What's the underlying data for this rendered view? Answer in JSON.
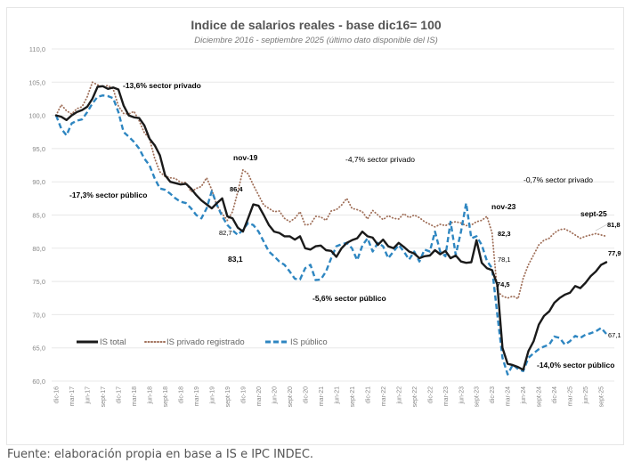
{
  "chart_data": {
    "type": "line",
    "title": "Indice de salarios reales -  base dic16= 100",
    "subtitle": "Diciembre 2016 - septiembre 2025 (último dato disponible del IS)",
    "xlabel": "",
    "ylabel": "",
    "ylim": [
      60,
      110
    ],
    "yticks": [
      "60,0",
      "65,0",
      "70,0",
      "75,0",
      "80,0",
      "85,0",
      "90,0",
      "95,0",
      "100,0",
      "105,0",
      "110,0"
    ],
    "grid": true,
    "legend_position": "bottom-left",
    "x_tick_labels": [
      "dic-16",
      "mar-17",
      "jun-17",
      "sept-17",
      "dic-17",
      "mar-18",
      "jun-18",
      "sept-18",
      "dic-18",
      "mar-19",
      "jun-19",
      "sept-19",
      "dic-19",
      "mar-20",
      "jun-20",
      "sept-20",
      "dic-20",
      "mar-21",
      "jun-21",
      "sept-21",
      "dic-21",
      "mar-22",
      "jun-22",
      "sept-22",
      "dic-22",
      "mar-23",
      "jun-23",
      "sept-23",
      "dic-23",
      "mar-24",
      "jun-24",
      "sept-24",
      "dic-24",
      "mar-25",
      "jun-25",
      "sept-25"
    ],
    "x_start": "dic-16",
    "x_frequency": "monthly",
    "series": [
      {
        "name": "IS total",
        "style": "solid",
        "color": "#1a1a1a",
        "values": [
          100.0,
          99.8,
          99.3,
          100.0,
          100.5,
          100.8,
          101.3,
          102.5,
          104.3,
          104.4,
          104.0,
          104.2,
          103.9,
          101.5,
          100.0,
          99.7,
          99.6,
          98.5,
          96.5,
          95.5,
          94.0,
          91.0,
          90.0,
          89.8,
          89.6,
          89.7,
          89.0,
          88.0,
          87.2,
          86.6,
          86.0,
          86.8,
          87.5,
          84.8,
          84.5,
          83.1,
          82.5,
          84.5,
          86.6,
          86.4,
          85.0,
          83.5,
          82.5,
          82.3,
          81.8,
          81.8,
          81.3,
          81.8,
          80.0,
          79.8,
          80.3,
          80.4,
          79.7,
          79.6,
          78.7,
          80.0,
          80.8,
          81.2,
          81.5,
          82.5,
          81.8,
          81.6,
          80.5,
          81.3,
          80.3,
          80.0,
          80.8,
          80.2,
          79.5,
          79.2,
          78.5,
          78.8,
          78.9,
          79.7,
          79.1,
          79.6,
          78.5,
          78.9,
          78.0,
          77.8,
          77.9,
          81.2,
          77.8,
          77.0,
          76.7,
          74.5,
          65.0,
          62.6,
          62.4,
          62.1,
          61.7,
          64.5,
          66.0,
          68.5,
          69.8,
          70.5,
          71.8,
          72.5,
          73.0,
          73.3,
          74.3,
          74.0,
          74.8,
          75.8,
          76.5,
          77.5,
          77.9
        ]
      },
      {
        "name": "IS privado registrado",
        "style": "dotted",
        "color": "#a0705a",
        "values": [
          100.0,
          101.6,
          100.7,
          100.2,
          101.0,
          101.3,
          102.8,
          105.0,
          104.6,
          104.3,
          104.5,
          104.0,
          101.4,
          100.3,
          100.2,
          100.6,
          99.2,
          97.4,
          96.5,
          93.5,
          91.5,
          90.8,
          90.6,
          90.5,
          89.9,
          89.9,
          88.5,
          89.0,
          89.3,
          90.6,
          88.8,
          86.4,
          85.2,
          84.2,
          85.5,
          88.5,
          91.8,
          91.2,
          89.5,
          88.0,
          86.5,
          86.0,
          85.5,
          85.6,
          84.5,
          84.0,
          84.5,
          85.5,
          83.5,
          83.6,
          84.8,
          84.7,
          84.2,
          85.6,
          85.8,
          86.5,
          87.5,
          86.0,
          85.8,
          85.5,
          84.4,
          85.7,
          85.0,
          84.3,
          84.9,
          84.5,
          84.4,
          85.2,
          84.6,
          85.0,
          84.6,
          84.0,
          83.6,
          83.2,
          83.6,
          83.4,
          83.8,
          84.0,
          83.8,
          83.4,
          83.5,
          84.0,
          84.2,
          84.8,
          82.3,
          73.5,
          72.8,
          72.5,
          72.8,
          72.4,
          75.5,
          77.5,
          79.0,
          80.5,
          81.2,
          81.5,
          82.3,
          82.8,
          82.9,
          82.5,
          82.0,
          81.5,
          81.8,
          82.0,
          82.2,
          82.0,
          81.8
        ]
      },
      {
        "name": "IS público",
        "style": "dashed",
        "color": "#2e86c1",
        "values": [
          100.0,
          98.0,
          97.0,
          98.8,
          99.2,
          99.4,
          100.5,
          101.8,
          102.8,
          103.0,
          102.9,
          102.6,
          100.5,
          97.5,
          96.8,
          96.0,
          95.0,
          93.5,
          92.5,
          90.5,
          89.0,
          88.8,
          88.2,
          87.5,
          87.0,
          86.8,
          86.0,
          85.0,
          84.5,
          86.0,
          88.6,
          86.5,
          84.8,
          83.5,
          82.7,
          82.0,
          82.8,
          83.8,
          83.5,
          82.5,
          81.0,
          79.5,
          78.8,
          78.0,
          77.5,
          76.5,
          75.4,
          75.3,
          77.0,
          77.5,
          75.2,
          75.3,
          76.5,
          78.5,
          80.3,
          80.6,
          80.8,
          80.0,
          78.2,
          80.4,
          81.5,
          79.5,
          80.8,
          80.3,
          78.5,
          79.5,
          80.5,
          79.5,
          78.3,
          79.5,
          78.0,
          79.8,
          79.5,
          82.5,
          79.5,
          78.8,
          84.0,
          79.0,
          82.5,
          86.8,
          81.5,
          81.8,
          80.5,
          78.1,
          77.0,
          70.0,
          63.5,
          61.0,
          62.5,
          61.8,
          61.5,
          63.5,
          64.2,
          64.8,
          65.2,
          65.5,
          66.7,
          66.5,
          65.5,
          66.0,
          66.8,
          66.5,
          67.0,
          67.2,
          67.5,
          68.0,
          67.1
        ]
      }
    ],
    "annotations": [
      {
        "text": "-13,6% sector privado",
        "color": "#9c6b4e"
      },
      {
        "text": "-17,3% sector público",
        "color": "#2e86c1"
      },
      {
        "text": "nov-19",
        "color": "#222222"
      },
      {
        "text": "86,4",
        "color": "#9c6b4e"
      },
      {
        "text": "82,7",
        "color": "#2e86c1"
      },
      {
        "text": "83,1",
        "color": "#222222"
      },
      {
        "text": "-4,7% sector privado",
        "color": "#9c6b4e"
      },
      {
        "text": "-5,6% sector público",
        "color": "#2e86c1"
      },
      {
        "text": "nov-23",
        "color": "#222222"
      },
      {
        "text": "82,3",
        "color": "#9c6b4e"
      },
      {
        "text": "78,1",
        "color": "#2e86c1"
      },
      {
        "text": "74,5",
        "color": "#222222"
      },
      {
        "text": "-0,7% sector privado",
        "color": "#9c6b4e"
      },
      {
        "text": "sept-25",
        "color": "#222222"
      },
      {
        "text": "81,8",
        "color": "#9c6b4e"
      },
      {
        "text": "77,9",
        "color": "#222222"
      },
      {
        "text": "67,1",
        "color": "#2e86c1"
      },
      {
        "text": "-14,0% sector público",
        "color": "#2e86c1"
      }
    ]
  },
  "source_note": "Fuente: elaboración propia en base a IS e IPC INDEC."
}
